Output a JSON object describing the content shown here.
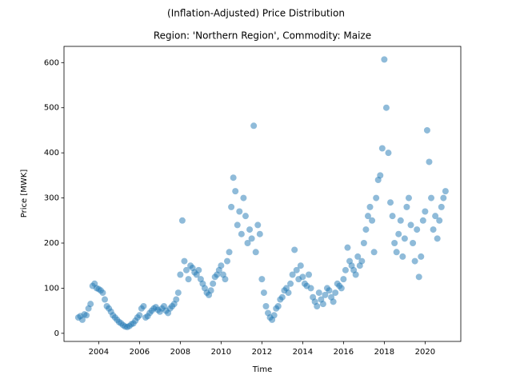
{
  "chart_data": {
    "type": "scatter",
    "suptitle": "(Inflation-Adjusted) Price Distribution",
    "title": "Region: 'Northern Region', Commodity: Maize",
    "x_label": "Time",
    "y_label": "Price [MWK]",
    "color": "#1f77b4",
    "alpha": 0.5,
    "xlim": [
      2002.3,
      2021.75
    ],
    "ylim": [
      -18,
      636
    ],
    "xticks": [
      2004,
      2006,
      2008,
      2010,
      2012,
      2014,
      2016,
      2018,
      2020
    ],
    "yticks": [
      0,
      100,
      200,
      300,
      400,
      500,
      600
    ],
    "x": [
      2003.0,
      2003.1,
      2003.2,
      2003.3,
      2003.4,
      2003.5,
      2003.6,
      2003.7,
      2003.8,
      2003.9,
      2004.0,
      2004.1,
      2004.2,
      2004.3,
      2004.4,
      2004.5,
      2004.6,
      2004.7,
      2004.8,
      2004.9,
      2005.0,
      2005.1,
      2005.2,
      2005.3,
      2005.4,
      2005.5,
      2005.6,
      2005.7,
      2005.8,
      2005.9,
      2006.0,
      2006.1,
      2006.2,
      2006.3,
      2006.4,
      2006.5,
      2006.6,
      2006.7,
      2006.8,
      2006.9,
      2007.0,
      2007.1,
      2007.2,
      2007.3,
      2007.4,
      2007.5,
      2007.6,
      2007.7,
      2007.8,
      2007.9,
      2008.0,
      2008.1,
      2008.2,
      2008.3,
      2008.4,
      2008.5,
      2008.6,
      2008.7,
      2008.8,
      2008.9,
      2009.0,
      2009.1,
      2009.2,
      2009.3,
      2009.4,
      2009.5,
      2009.6,
      2009.7,
      2009.8,
      2009.9,
      2010.0,
      2010.1,
      2010.2,
      2010.3,
      2010.4,
      2010.5,
      2010.6,
      2010.7,
      2010.8,
      2010.9,
      2011.0,
      2011.1,
      2011.2,
      2011.3,
      2011.4,
      2011.5,
      2011.6,
      2011.7,
      2011.8,
      2011.9,
      2012.0,
      2012.1,
      2012.2,
      2012.3,
      2012.4,
      2012.5,
      2012.6,
      2012.7,
      2012.8,
      2012.9,
      2013.0,
      2013.1,
      2013.2,
      2013.3,
      2013.4,
      2013.5,
      2013.6,
      2013.7,
      2013.8,
      2013.9,
      2014.0,
      2014.1,
      2014.2,
      2014.3,
      2014.4,
      2014.5,
      2014.6,
      2014.7,
      2014.8,
      2014.9,
      2015.0,
      2015.1,
      2015.2,
      2015.3,
      2015.4,
      2015.5,
      2015.6,
      2015.7,
      2015.8,
      2015.9,
      2016.0,
      2016.1,
      2016.2,
      2016.3,
      2016.4,
      2016.5,
      2016.6,
      2016.7,
      2016.8,
      2016.9,
      2017.0,
      2017.1,
      2017.2,
      2017.3,
      2017.4,
      2017.5,
      2017.6,
      2017.7,
      2017.8,
      2017.9,
      2018.0,
      2018.1,
      2018.2,
      2018.3,
      2018.4,
      2018.5,
      2018.6,
      2018.7,
      2018.8,
      2018.9,
      2019.0,
      2019.1,
      2019.2,
      2019.3,
      2019.4,
      2019.5,
      2019.6,
      2019.7,
      2019.8,
      2019.9,
      2020.0,
      2020.1,
      2020.2,
      2020.3,
      2020.4,
      2020.5,
      2020.6,
      2020.7,
      2020.8,
      2020.9,
      2021.0
    ],
    "y": [
      35,
      38,
      30,
      42,
      40,
      55,
      65,
      105,
      110,
      100,
      98,
      95,
      90,
      75,
      60,
      55,
      48,
      40,
      35,
      30,
      25,
      22,
      18,
      15,
      14,
      16,
      20,
      22,
      28,
      35,
      40,
      55,
      60,
      35,
      38,
      45,
      50,
      55,
      58,
      52,
      48,
      55,
      60,
      50,
      45,
      55,
      60,
      65,
      75,
      90,
      130,
      250,
      160,
      140,
      120,
      150,
      145,
      135,
      130,
      140,
      120,
      110,
      100,
      90,
      85,
      95,
      110,
      125,
      130,
      140,
      150,
      130,
      120,
      160,
      180,
      280,
      345,
      315,
      240,
      270,
      220,
      300,
      260,
      200,
      230,
      210,
      460,
      180,
      240,
      220,
      120,
      90,
      60,
      45,
      35,
      30,
      40,
      55,
      60,
      75,
      80,
      95,
      100,
      90,
      110,
      130,
      185,
      140,
      120,
      150,
      125,
      110,
      105,
      130,
      100,
      80,
      70,
      60,
      90,
      75,
      65,
      85,
      100,
      95,
      80,
      70,
      90,
      110,
      105,
      100,
      120,
      140,
      190,
      160,
      150,
      140,
      130,
      170,
      150,
      160,
      200,
      230,
      260,
      280,
      250,
      180,
      300,
      340,
      350,
      410,
      607,
      500,
      400,
      290,
      260,
      200,
      180,
      220,
      250,
      170,
      210,
      280,
      300,
      240,
      200,
      160,
      230,
      125,
      170,
      250,
      270,
      450,
      380,
      300,
      230,
      260,
      210,
      250,
      280,
      300,
      315
    ]
  }
}
